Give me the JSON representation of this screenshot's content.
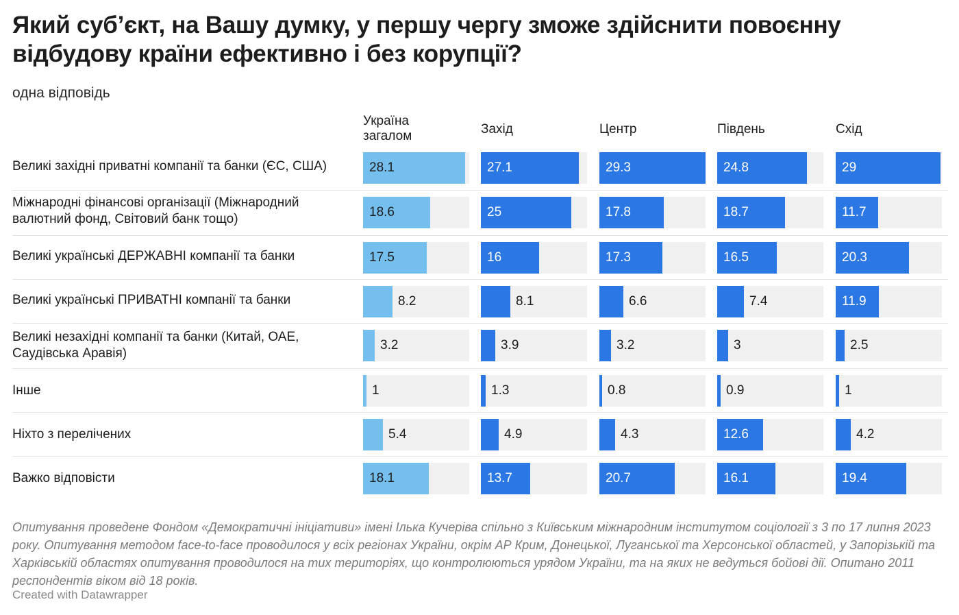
{
  "title": "Який суб’єкт, на Вашу думку, у першу чергу зможе здійснити повоєнну відбудову країни ефективно і без корупції?",
  "subtitle": "одна відповідь",
  "notes": "Опитування проведене Фондом «Демократичні ініціативи» імені Ілька Кучеріва спільно з Київським міжнародним інститутом соціології з 3 по 17 липня 2023 року. Опитування методом face-to-face проводилося у всіх регіонах України, окрім АР Крим, Донецької, Луганської та Херсонської областей, у Запорізькій та Харківській областях опитування проводилося на тих територіях, що контролюються урядом України, та на яких не ведуться бойові дії. Опитано 2011 респондентів віком від 18 років.",
  "credit": "Created with Datawrapper",
  "colors": {
    "first_column_bar": "#74bfee",
    "other_columns_bar": "#2b78e4",
    "track": "#f0f0f0"
  },
  "chart_data": {
    "type": "bar",
    "title": "Який суб’єкт, на Вашу думку, у першу чергу зможе здійснити повоєнну відбудову країни ефективно і без корупції?",
    "subtitle": "одна відповідь",
    "columns": [
      "Україна загалом",
      "Захід",
      "Центр",
      "Південь",
      "Схід"
    ],
    "categories": [
      "Великі західні приватні компанії та банки (ЄС, США)",
      "Міжнародні фінансові організації (Міжнародний валютний фонд, Світовий банк тощо)",
      "Великі українські ДЕРЖАВНІ компанії та банки",
      "Великі українські ПРИВАТНІ компанії та банки",
      "Великі незахідні компанії та банки (Китай, ОАЕ, Саудівська Аравія)",
      "Інше",
      "Ніхто з перелічених",
      "Важко відповісти"
    ],
    "series": [
      {
        "name": "Україна загалом",
        "values": [
          28.1,
          18.6,
          17.5,
          8.2,
          3.2,
          1,
          5.4,
          18.1
        ]
      },
      {
        "name": "Захід",
        "values": [
          27.1,
          25,
          16,
          8.1,
          3.9,
          1.3,
          4.9,
          13.7
        ]
      },
      {
        "name": "Центр",
        "values": [
          29.3,
          17.8,
          17.3,
          6.6,
          3.2,
          0.8,
          4.3,
          20.7
        ]
      },
      {
        "name": "Південь",
        "values": [
          24.8,
          18.7,
          16.5,
          7.4,
          3,
          0.9,
          12.6,
          16.1
        ]
      },
      {
        "name": "Схід",
        "values": [
          29,
          11.7,
          20.3,
          11.9,
          2.5,
          1,
          4.2,
          19.4
        ]
      }
    ],
    "xlim": [
      0,
      29.3
    ]
  }
}
